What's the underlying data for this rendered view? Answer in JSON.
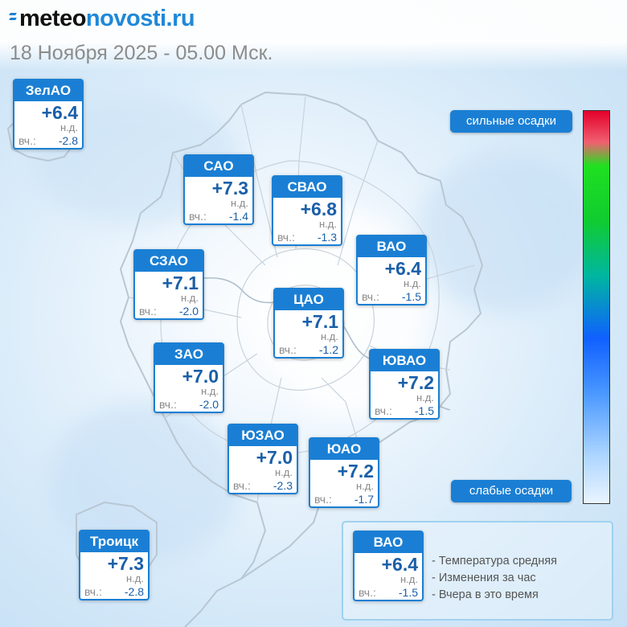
{
  "header": {
    "logo_part1": "meteo",
    "logo_part2": "novosti.ru",
    "datetime": "18 Ноября 2025 - 05.00 Мск."
  },
  "labels": {
    "no_data": "н.д.",
    "yesterday_short": "вч.:"
  },
  "districts": [
    {
      "id": "zelao",
      "name": "ЗелАО",
      "temp": "+6.4",
      "change": "н.д.",
      "yesterday": "-2.8"
    },
    {
      "id": "sao",
      "name": "САО",
      "temp": "+7.3",
      "change": "н.д.",
      "yesterday": "-1.4"
    },
    {
      "id": "svao",
      "name": "СВАО",
      "temp": "+6.8",
      "change": "н.д.",
      "yesterday": "-1.3"
    },
    {
      "id": "vao",
      "name": "ВАО",
      "temp": "+6.4",
      "change": "н.д.",
      "yesterday": "-1.5"
    },
    {
      "id": "szao",
      "name": "СЗАО",
      "temp": "+7.1",
      "change": "н.д.",
      "yesterday": "-2.0"
    },
    {
      "id": "cao",
      "name": "ЦАО",
      "temp": "+7.1",
      "change": "н.д.",
      "yesterday": "-1.2"
    },
    {
      "id": "zao",
      "name": "ЗАО",
      "temp": "+7.0",
      "change": "н.д.",
      "yesterday": "-2.0"
    },
    {
      "id": "yuvao",
      "name": "ЮВАО",
      "temp": "+7.2",
      "change": "н.д.",
      "yesterday": "-1.5"
    },
    {
      "id": "yuzao",
      "name": "ЮЗАО",
      "temp": "+7.0",
      "change": "н.д.",
      "yesterday": "-2.3"
    },
    {
      "id": "yuao",
      "name": "ЮАО",
      "temp": "+7.2",
      "change": "н.д.",
      "yesterday": "-1.7"
    },
    {
      "id": "troick",
      "name": "Троицк",
      "temp": "+7.3",
      "change": "н.д.",
      "yesterday": "-2.8"
    }
  ],
  "precip_scale": {
    "top_label": "сильные осадки",
    "bottom_label": "слабые осадки",
    "colors": [
      "#e4002a",
      "#20e020",
      "#1060ff",
      "#eaf4ff"
    ]
  },
  "legend": {
    "sample": {
      "name": "ВАО",
      "temp": "+6.4",
      "change": "н.д.",
      "yesterday": "-1.5"
    },
    "lines": [
      "- Температура средняя",
      "- Изменения за час",
      "- Вчера в это время"
    ]
  },
  "colors": {
    "accent": "#1a7fd4",
    "value_text": "#1a5fa8",
    "muted": "#8a8a8a"
  }
}
